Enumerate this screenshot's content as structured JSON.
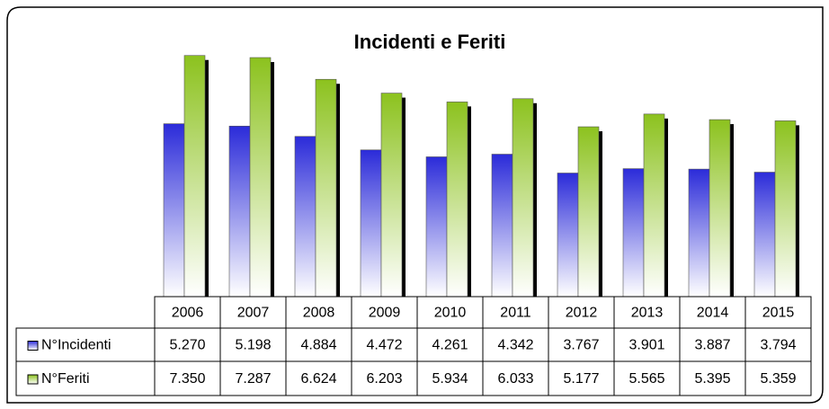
{
  "chart_data": {
    "type": "bar",
    "title": "Incidenti e Feriti",
    "categories": [
      "2006",
      "2007",
      "2008",
      "2009",
      "2010",
      "2011",
      "2012",
      "2013",
      "2014",
      "2015"
    ],
    "series": [
      {
        "name": "N°Incidenti",
        "color": "#2b2bd9",
        "values": [
          5270,
          5198,
          4884,
          4472,
          4261,
          4342,
          3767,
          3901,
          3887,
          3794
        ],
        "value_labels": [
          "5.270",
          "5.198",
          "4.884",
          "4.472",
          "4.261",
          "4.342",
          "3.767",
          "3.901",
          "3.887",
          "3.794"
        ]
      },
      {
        "name": "N°Feriti",
        "color": "#8cc21e",
        "values": [
          7350,
          7287,
          6624,
          6203,
          5934,
          6033,
          5177,
          5565,
          5395,
          5359
        ],
        "value_labels": [
          "7.350",
          "7.287",
          "6.624",
          "6.203",
          "5.934",
          "6.033",
          "5.177",
          "5.565",
          "5.395",
          "5.359"
        ]
      }
    ],
    "ylim": [
      0,
      8000
    ]
  }
}
